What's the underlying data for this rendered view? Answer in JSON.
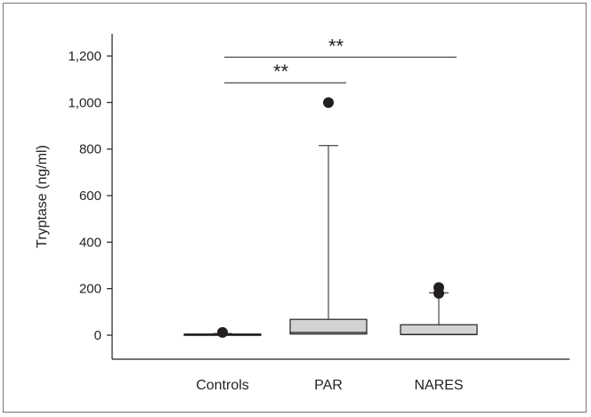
{
  "chart_data": {
    "type": "box",
    "title": "",
    "xlabel": "",
    "ylabel": "Tryptase (ng/ml)",
    "ylim": [
      -100,
      1300
    ],
    "yticks": [
      0,
      200,
      400,
      600,
      800,
      1000,
      1200
    ],
    "ytick_labels": [
      "0",
      "200",
      "400",
      "600",
      "800",
      "1,000",
      "1,200"
    ],
    "categories": [
      "Controls",
      "PAR",
      "NARES"
    ],
    "boxes": [
      {
        "category": "Controls",
        "whisker_low": 2,
        "q1": 3,
        "median": 4,
        "q3": 5,
        "whisker_high": 7,
        "outliers": [
          12
        ]
      },
      {
        "category": "PAR",
        "whisker_low": 3,
        "q1": 5,
        "median": 12,
        "q3": 68,
        "whisker_high": 815,
        "outliers": [
          1000
        ]
      },
      {
        "category": "NARES",
        "whisker_low": 2,
        "q1": 3,
        "median": 3,
        "q3": 45,
        "whisker_high": 182,
        "outliers": [
          180,
          205
        ]
      }
    ],
    "significance": [
      {
        "from": "Controls",
        "to": "PAR",
        "label": "**",
        "y": 1085
      },
      {
        "from": "Controls",
        "to": "NARES",
        "label": "**",
        "y": 1195
      }
    ],
    "grid": false,
    "legend": "none",
    "colors": {
      "box_fill": "#d1d3d4",
      "line": "#231f20",
      "outlier": "#231f20"
    }
  }
}
